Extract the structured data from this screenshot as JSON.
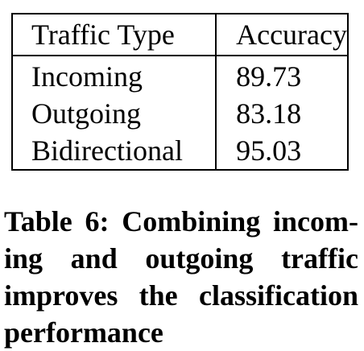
{
  "table": {
    "headers": [
      "Traffic Type",
      "Accuracy"
    ],
    "rows": [
      [
        "Incoming",
        "89.73"
      ],
      [
        "Outgoing",
        "83.18"
      ],
      [
        "Bidirectional",
        "95.03"
      ]
    ]
  },
  "caption": {
    "label": "Table 6:",
    "text": "Combining incoming and outgoing traffic improves the classification performance"
  }
}
